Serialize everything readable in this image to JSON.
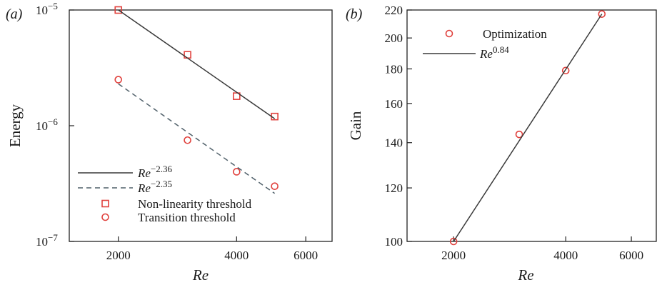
{
  "chart_data": [
    {
      "panel_label": "(a)",
      "type": "scatter",
      "x_scale": "log",
      "y_scale": "log",
      "xlabel": "Re",
      "ylabel": "Energy",
      "xlim": [
        1500,
        7000
      ],
      "ylim": [
        1e-07,
        1e-05
      ],
      "x_ticks": [
        {
          "value": 2000,
          "label": "2000"
        },
        {
          "value": 4000,
          "label": "4000"
        },
        {
          "value": 6000,
          "label": "6000"
        }
      ],
      "y_ticks": [
        {
          "value": 1e-05,
          "base": "10",
          "exp": "−5"
        },
        {
          "value": 1e-06,
          "base": "10",
          "exp": "−6"
        },
        {
          "value": 1e-07,
          "base": "10",
          "exp": "−7"
        }
      ],
      "series": [
        {
          "name": "Non-linearity threshold",
          "kind": "markers",
          "marker": "square",
          "x": [
            2000,
            3000,
            4000,
            5000
          ],
          "y": [
            1e-05,
            4.1e-06,
            1.8e-06,
            1.2e-06
          ]
        },
        {
          "name": "Transition threshold",
          "kind": "markers",
          "marker": "circle",
          "x": [
            2000,
            3000,
            4000,
            5000
          ],
          "y": [
            2.5e-06,
            7.5e-07,
            4e-07,
            3e-07
          ]
        },
        {
          "kind": "line",
          "style": "solid",
          "legend_base": "Re",
          "legend_exp": "−2.36",
          "x": [
            2000,
            5000
          ],
          "y": [
            1e-05,
            1.15e-06
          ]
        },
        {
          "kind": "line",
          "style": "dashed",
          "legend_base": "Re",
          "legend_exp": "−2.35",
          "x": [
            2000,
            5000
          ],
          "y": [
            2.3e-06,
            2.6e-07
          ]
        }
      ],
      "legend_position": "bottom-left"
    },
    {
      "panel_label": "(b)",
      "type": "scatter",
      "x_scale": "log",
      "y_scale": "log",
      "xlabel": "Re",
      "ylabel": "Gain",
      "xlim": [
        1500,
        7000
      ],
      "ylim": [
        100,
        220
      ],
      "x_ticks": [
        {
          "value": 2000,
          "label": "2000"
        },
        {
          "value": 4000,
          "label": "4000"
        },
        {
          "value": 6000,
          "label": "6000"
        }
      ],
      "y_ticks": [
        {
          "value": 100,
          "label": "100"
        },
        {
          "value": 120,
          "label": "120"
        },
        {
          "value": 140,
          "label": "140"
        },
        {
          "value": 160,
          "label": "160"
        },
        {
          "value": 180,
          "label": "180"
        },
        {
          "value": 200,
          "label": "200"
        },
        {
          "value": 220,
          "label": "220"
        }
      ],
      "series": [
        {
          "name": "Optimization",
          "kind": "markers",
          "marker": "circle",
          "x": [
            2000,
            3000,
            4000,
            5000
          ],
          "y": [
            100,
            144,
            179,
            217
          ]
        },
        {
          "kind": "line",
          "style": "solid",
          "legend_base": "Re",
          "legend_exp": "0.84",
          "x": [
            2000,
            5000
          ],
          "y": [
            100,
            217
          ]
        }
      ],
      "legend_position": "top-left"
    }
  ],
  "colors": {
    "marker": "#e0403c",
    "line": "#3a3a3a",
    "dashed": "#50606a",
    "axis": "#222222"
  }
}
